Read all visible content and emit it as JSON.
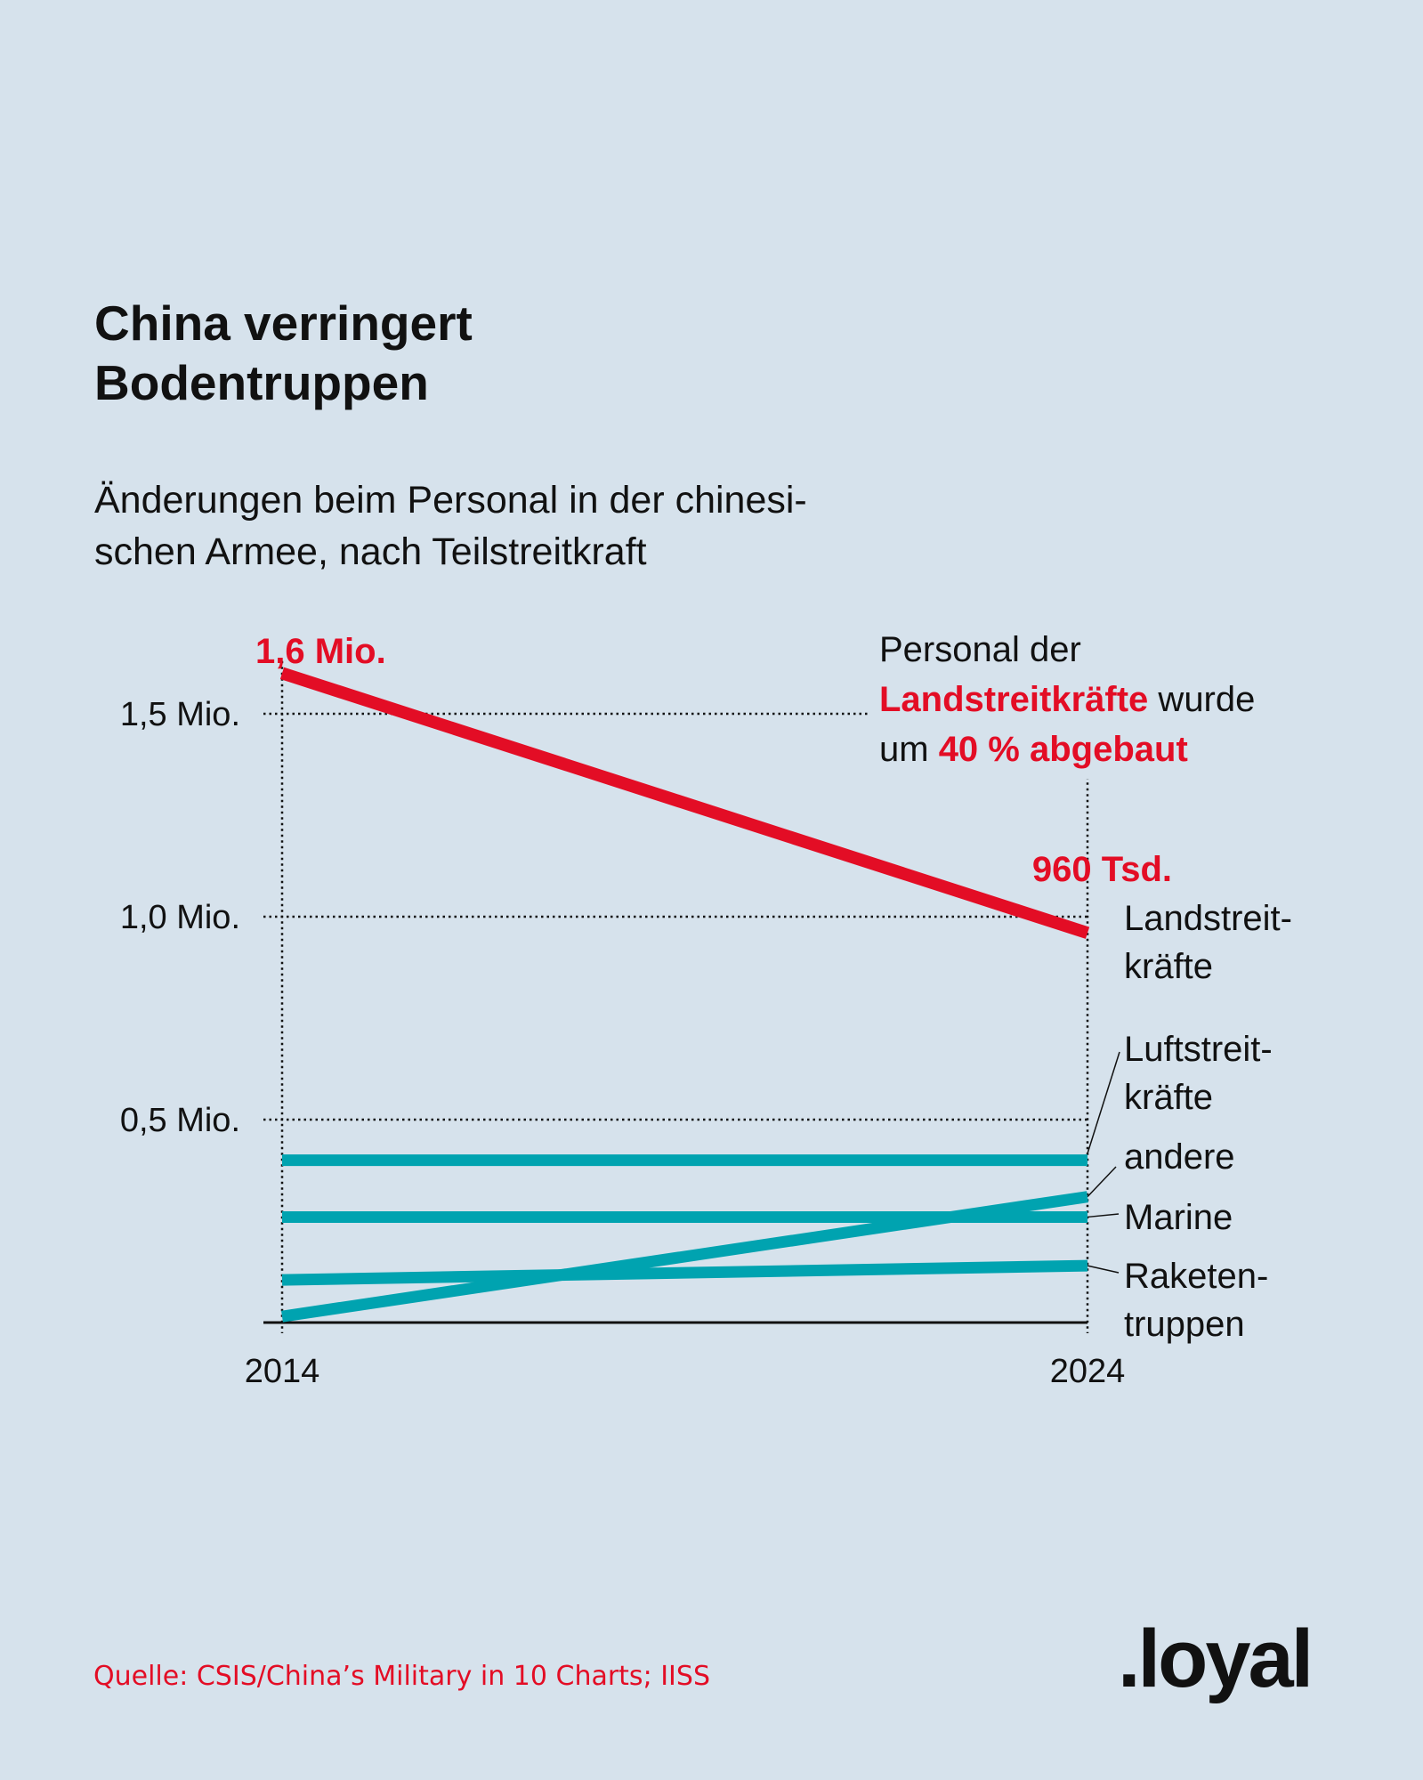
{
  "title": [
    "China verringert",
    "Bodentruppen"
  ],
  "subtitle": [
    "Änderungen beim Personal in der chinesi-",
    "schen Armee, nach Teilstreitkraft"
  ],
  "annotation": {
    "line1": "Personal der",
    "line2_red": "Landstreitkräfte",
    "line2_rest": " wurde",
    "line3_start": "um ",
    "line3_red": "40 % abgebaut"
  },
  "colors": {
    "background": "#d6e2ec",
    "land": "#e30d25",
    "others": "#00a3b0"
  },
  "source": "Quelle: CSIS/China’s Military in 10 Charts; IISS",
  "logo": ".loyal",
  "chart_data": {
    "type": "line",
    "x": [
      2014,
      2024
    ],
    "x_tick_labels": [
      "2014",
      "2024"
    ],
    "y_unit": "Mio.",
    "ylim": [
      0,
      1.6
    ],
    "y_ticks": [
      0.5,
      1.0,
      1.5
    ],
    "y_tick_labels": [
      "0,5 Mio.",
      "1,0 Mio.",
      "1,5 Mio."
    ],
    "grid": "dotted horizontal",
    "series": [
      {
        "name": "Landstreitkräfte",
        "label_lines": [
          "Landstreit-",
          "kräfte"
        ],
        "values": [
          1.6,
          0.96
        ],
        "color": "#e30d25",
        "data_labels": [
          "1,6 Mio.",
          "960 Tsd."
        ]
      },
      {
        "name": "Luftstreitkräfte",
        "label_lines": [
          "Luftstreit-",
          "kräfte"
        ],
        "values": [
          0.4,
          0.4
        ],
        "color": "#00a3b0"
      },
      {
        "name": "andere",
        "label_lines": [
          "andere"
        ],
        "values": [
          0.015,
          0.31
        ],
        "color": "#00a3b0"
      },
      {
        "name": "Marine",
        "label_lines": [
          "Marine"
        ],
        "values": [
          0.26,
          0.26
        ],
        "color": "#00a3b0"
      },
      {
        "name": "Raketentruppen",
        "label_lines": [
          "Raketen-",
          "truppen"
        ],
        "values": [
          0.105,
          0.14
        ],
        "color": "#00a3b0"
      }
    ]
  }
}
